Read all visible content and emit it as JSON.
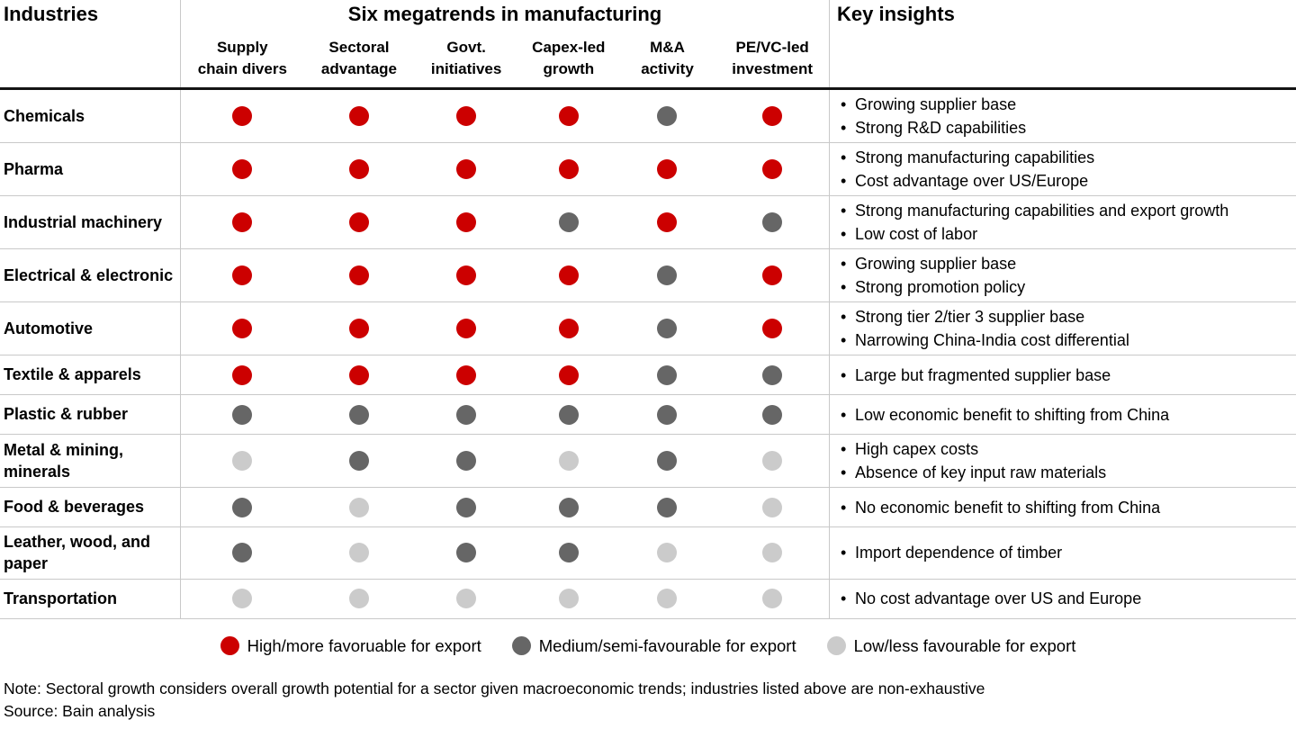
{
  "header": {
    "industries_label": "Industries",
    "megatrends_title": "Six megatrends in manufacturing",
    "key_insights_label": "Key insights",
    "columns": [
      {
        "line1": "Supply",
        "line2": "chain divers"
      },
      {
        "line1": "Sectoral",
        "line2": "advantage"
      },
      {
        "line1": "Govt.",
        "line2": "initiatives"
      },
      {
        "line1": "Capex-led",
        "line2": "growth"
      },
      {
        "line1": "M&A",
        "line2": "activity"
      },
      {
        "line1": "PE/VC-led",
        "line2": "investment"
      }
    ]
  },
  "rows": [
    {
      "industry": "Chemicals",
      "ratings": [
        "high",
        "high",
        "high",
        "high",
        "medium",
        "high"
      ],
      "insights": [
        "Growing supplier base",
        "Strong R&D capabilities"
      ]
    },
    {
      "industry": "Pharma",
      "ratings": [
        "high",
        "high",
        "high",
        "high",
        "high",
        "high"
      ],
      "insights": [
        "Strong manufacturing capabilities",
        "Cost advantage over US/Europe"
      ]
    },
    {
      "industry": "Industrial machinery",
      "ratings": [
        "high",
        "high",
        "high",
        "medium",
        "high",
        "medium"
      ],
      "insights": [
        "Strong manufacturing capabilities and export growth",
        "Low cost of labor"
      ]
    },
    {
      "industry": "Electrical & electronic",
      "ratings": [
        "high",
        "high",
        "high",
        "high",
        "medium",
        "high"
      ],
      "insights": [
        "Growing supplier base",
        "Strong promotion policy"
      ]
    },
    {
      "industry": "Automotive",
      "ratings": [
        "high",
        "high",
        "high",
        "high",
        "medium",
        "high"
      ],
      "insights": [
        "Strong tier 2/tier 3 supplier base",
        "Narrowing China-India cost differential"
      ]
    },
    {
      "industry": "Textile & apparels",
      "ratings": [
        "high",
        "high",
        "high",
        "high",
        "medium",
        "medium"
      ],
      "insights": [
        "Large but fragmented supplier base"
      ]
    },
    {
      "industry": "Plastic & rubber",
      "ratings": [
        "medium",
        "medium",
        "medium",
        "medium",
        "medium",
        "medium"
      ],
      "insights": [
        "Low economic benefit to shifting from China"
      ]
    },
    {
      "industry": "Metal & mining, minerals",
      "ratings": [
        "low",
        "medium",
        "medium",
        "low",
        "medium",
        "low"
      ],
      "insights": [
        "High capex costs",
        "Absence of key input raw materials"
      ]
    },
    {
      "industry": "Food & beverages",
      "ratings": [
        "medium",
        "low",
        "medium",
        "medium",
        "medium",
        "low"
      ],
      "insights": [
        "No economic benefit to shifting from China"
      ]
    },
    {
      "industry": "Leather, wood, and paper",
      "ratings": [
        "medium",
        "low",
        "medium",
        "medium",
        "low",
        "low"
      ],
      "insights": [
        "Import dependence of timber"
      ]
    },
    {
      "industry": "Transportation",
      "ratings": [
        "low",
        "low",
        "low",
        "low",
        "low",
        "low"
      ],
      "insights": [
        "No cost advantage over US and Europe"
      ]
    }
  ],
  "legend": [
    {
      "level": "high",
      "label": "High/more favoruable for export"
    },
    {
      "level": "medium",
      "label": "Medium/semi-favourable for export"
    },
    {
      "level": "low",
      "label": "Low/less favourable for export"
    }
  ],
  "colors": {
    "high": "#cc0000",
    "medium": "#666666",
    "low": "#cbcbcb"
  },
  "notes": {
    "note": "Note: Sectoral growth considers overall growth potential for a sector given macroeconomic trends; industries listed above are non-exhaustive",
    "source": "Source: Bain analysis"
  },
  "chart_data": {
    "type": "heatmap",
    "title": "Six megatrends in manufacturing",
    "x_categories": [
      "Supply chain divers",
      "Sectoral advantage",
      "Govt. initiatives",
      "Capex-led growth",
      "M&A activity",
      "PE/VC-led investment"
    ],
    "y_categories": [
      "Chemicals",
      "Pharma",
      "Industrial machinery",
      "Electrical & electronic",
      "Automotive",
      "Textile & apparels",
      "Plastic & rubber",
      "Metal & mining, minerals",
      "Food & beverages",
      "Leather, wood, and paper",
      "Transportation"
    ],
    "values": [
      [
        "high",
        "high",
        "high",
        "high",
        "medium",
        "high"
      ],
      [
        "high",
        "high",
        "high",
        "high",
        "high",
        "high"
      ],
      [
        "high",
        "high",
        "high",
        "medium",
        "high",
        "medium"
      ],
      [
        "high",
        "high",
        "high",
        "high",
        "medium",
        "high"
      ],
      [
        "high",
        "high",
        "high",
        "high",
        "medium",
        "high"
      ],
      [
        "high",
        "high",
        "high",
        "high",
        "medium",
        "medium"
      ],
      [
        "medium",
        "medium",
        "medium",
        "medium",
        "medium",
        "medium"
      ],
      [
        "low",
        "medium",
        "medium",
        "low",
        "medium",
        "low"
      ],
      [
        "medium",
        "low",
        "medium",
        "medium",
        "medium",
        "low"
      ],
      [
        "medium",
        "low",
        "medium",
        "medium",
        "low",
        "low"
      ],
      [
        "low",
        "low",
        "low",
        "low",
        "low",
        "low"
      ]
    ],
    "value_scale": [
      "high",
      "medium",
      "low"
    ],
    "legend": [
      "High/more favoruable for export",
      "Medium/semi-favourable for export",
      "Low/less favourable for export"
    ],
    "legend_position": "bottom",
    "grid": true
  }
}
